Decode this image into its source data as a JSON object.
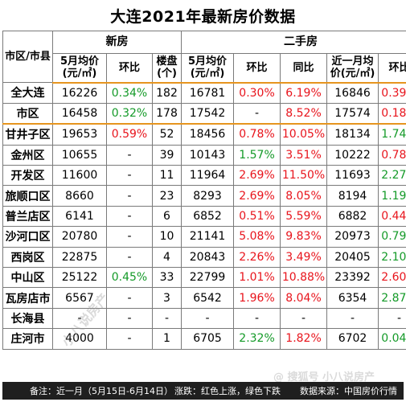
{
  "title": "大连2021年最新房价数据",
  "headers": {
    "district": "市区/市县",
    "new_group": "新房",
    "second_group": "二手房",
    "new_price": "5月均价(元/㎡)",
    "new_mom": "环比",
    "new_projects": "楼盘(个)",
    "sec_price": "5月均价(元/㎡)",
    "sec_mom": "环比",
    "sec_yoy": "同比",
    "sec_recent": "近一月均价(元/㎡)",
    "sec_recent_mom": "环比"
  },
  "rows": [
    {
      "name": "全大连",
      "np": "16226",
      "nm": "0.34%",
      "nmc": "green",
      "nc": "182",
      "sp": "16781",
      "sm": "0.30%",
      "smc": "red",
      "sy": "6.19%",
      "syc": "red",
      "rp": "16846",
      "rm": "0.39%",
      "rmc": "red"
    },
    {
      "name": "市区",
      "np": "16458",
      "nm": "0.32%",
      "nmc": "green",
      "nc": "178",
      "sp": "17542",
      "sm": "-",
      "smc": "",
      "sy": "8.52%",
      "syc": "red",
      "rp": "17574",
      "rm": "0.18%",
      "rmc": "red"
    },
    {
      "name": "甘井子区",
      "np": "19653",
      "nm": "0.59%",
      "nmc": "red",
      "nc": "52",
      "sp": "18456",
      "sm": "0.78%",
      "smc": "red",
      "sy": "10.05%",
      "syc": "red",
      "rp": "18134",
      "rm": "1.74%",
      "rmc": "green"
    },
    {
      "name": "金州区",
      "np": "10655",
      "nm": "-",
      "nmc": "",
      "nc": "39",
      "sp": "10143",
      "sm": "1.57%",
      "smc": "green",
      "sy": "3.51%",
      "syc": "red",
      "rp": "10222",
      "rm": "0.78%",
      "rmc": "red"
    },
    {
      "name": "开发区",
      "np": "11600",
      "nm": "-",
      "nmc": "",
      "nc": "11",
      "sp": "11964",
      "sm": "2.69%",
      "smc": "red",
      "sy": "11.50%",
      "syc": "red",
      "rp": "11693",
      "rm": "2.27%",
      "rmc": "green"
    },
    {
      "name": "旅顺口区",
      "np": "8660",
      "nm": "-",
      "nmc": "",
      "nc": "23",
      "sp": "8293",
      "sm": "2.69%",
      "smc": "red",
      "sy": "8.05%",
      "syc": "red",
      "rp": "8194",
      "rm": "1.19%",
      "rmc": "green"
    },
    {
      "name": "普兰店区",
      "np": "6141",
      "nm": "-",
      "nmc": "",
      "nc": "6",
      "sp": "6852",
      "sm": "0.51%",
      "smc": "red",
      "sy": "5.59%",
      "syc": "red",
      "rp": "6882",
      "rm": "0.44%",
      "rmc": "red"
    },
    {
      "name": "沙河口区",
      "np": "20780",
      "nm": "-",
      "nmc": "",
      "nc": "10",
      "sp": "21141",
      "sm": "5.08%",
      "smc": "red",
      "sy": "9.83%",
      "syc": "red",
      "rp": "20973",
      "rm": "0.79%",
      "rmc": "green"
    },
    {
      "name": "西岗区",
      "np": "22875",
      "nm": "-",
      "nmc": "",
      "nc": "4",
      "sp": "20843",
      "sm": "2.26%",
      "smc": "red",
      "sy": "3.49%",
      "syc": "red",
      "rp": "20405",
      "rm": "2.10%",
      "rmc": "green"
    },
    {
      "name": "中山区",
      "np": "25122",
      "nm": "0.45%",
      "nmc": "green",
      "nc": "33",
      "sp": "22799",
      "sm": "1.01%",
      "smc": "red",
      "sy": "10.88%",
      "syc": "red",
      "rp": "23392",
      "rm": "2.60%",
      "rmc": "red"
    },
    {
      "name": "瓦房店市",
      "np": "6567",
      "nm": "-",
      "nmc": "",
      "nc": "3",
      "sp": "6542",
      "sm": "1.96%",
      "smc": "red",
      "sy": "8.04%",
      "syc": "red",
      "rp": "6354",
      "rm": "2.87%",
      "rmc": "green"
    },
    {
      "name": "长海县",
      "np": "-",
      "nm": "-",
      "nmc": "",
      "nc": "-",
      "sp": "-",
      "sm": "-",
      "smc": "",
      "sy": "-",
      "syc": "",
      "rp": "-",
      "rm": "-",
      "rmc": ""
    },
    {
      "name": "庄河市",
      "np": "4000",
      "nm": "-",
      "nmc": "",
      "nc": "1",
      "sp": "6705",
      "sm": "2.32%",
      "smc": "green",
      "sy": "1.82%",
      "syc": "red",
      "rp": "6702",
      "rm": "0.04%",
      "rmc": "green"
    }
  ],
  "footer": {
    "note": "备注：近一月（5月15日-6月14日）",
    "legend": "涨跌：红色上涨，绿色下跌",
    "source": "数据来源：中国房价行情"
  },
  "watermark": {
    "text": "小八说房产",
    "bottom_text": "@ 搜狐号 小八说房产"
  },
  "colors": {
    "up": "#e8141c",
    "down": "#149a28",
    "separator": "#e6951f"
  }
}
